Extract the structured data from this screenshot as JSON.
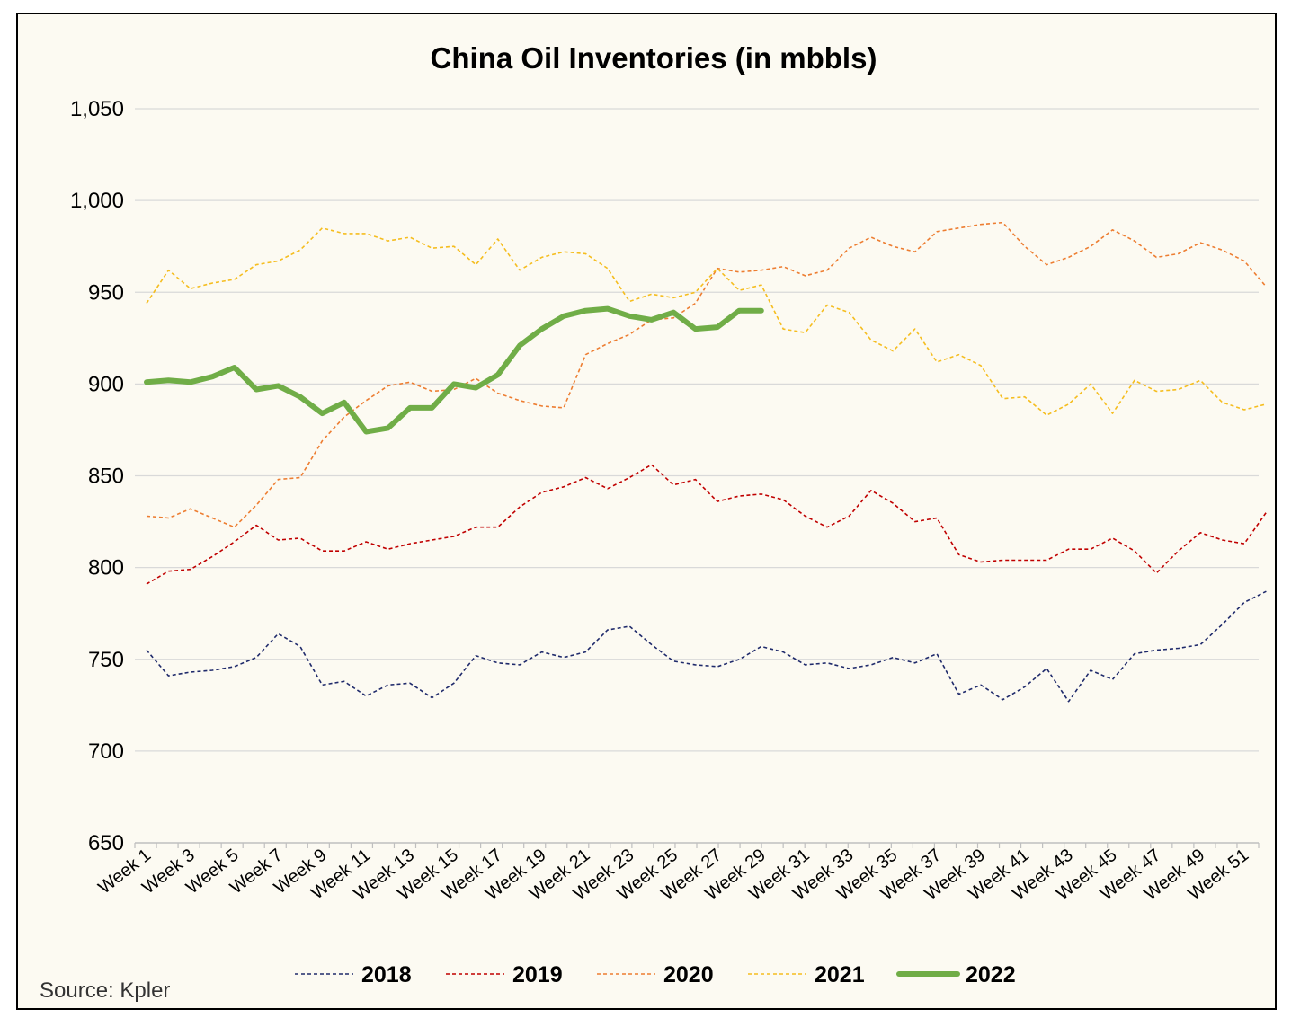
{
  "chart_data": {
    "type": "line",
    "title": "China Oil Inventories (in mbbls)",
    "source": "Source: Kpler",
    "ylim": [
      650,
      1050
    ],
    "y_ticks": [
      "1,050",
      "1,000",
      "950",
      "900",
      "850",
      "800",
      "750",
      "700",
      "650"
    ],
    "y_tick_values": [
      1050,
      1000,
      950,
      900,
      850,
      800,
      750,
      700,
      650
    ],
    "grid": true,
    "legend_position": "bottom",
    "x_labels": [
      "Week 1",
      "Week 3",
      "Week 5",
      "Week 7",
      "Week 9",
      "Week 11",
      "Week 13",
      "Week 15",
      "Week 17",
      "Week 19",
      "Week 21",
      "Week 23",
      "Week 25",
      "Week 27",
      "Week 29",
      "Week 31",
      "Week 33",
      "Week 35",
      "Week 37",
      "Week 39",
      "Week 41",
      "Week 43",
      "Week 45",
      "Week 47",
      "Week 49",
      "Week 51"
    ],
    "x_label_weeks": [
      1,
      3,
      5,
      7,
      9,
      11,
      13,
      15,
      17,
      19,
      21,
      23,
      25,
      27,
      29,
      31,
      33,
      35,
      37,
      39,
      41,
      43,
      45,
      47,
      49,
      51
    ],
    "num_weeks": 52,
    "series": [
      {
        "name": "2018",
        "color": "#1f2a6b",
        "style": "dashed",
        "values": [
          755,
          741,
          743,
          744,
          746,
          751,
          764,
          757,
          736,
          738,
          730,
          736,
          737,
          729,
          737,
          752,
          748,
          747,
          754,
          751,
          754,
          766,
          768,
          758,
          749,
          747,
          746,
          750,
          757,
          754,
          747,
          748,
          745,
          747,
          751,
          748,
          753,
          731,
          736,
          728,
          735,
          745,
          727,
          744,
          739,
          753,
          755,
          756,
          758,
          769,
          781,
          787
        ]
      },
      {
        "name": "2019",
        "color": "#c00000",
        "style": "dashed",
        "values": [
          791,
          798,
          799,
          806,
          814,
          823,
          815,
          816,
          809,
          809,
          814,
          810,
          813,
          815,
          817,
          822,
          822,
          833,
          841,
          844,
          849,
          843,
          849,
          856,
          845,
          848,
          836,
          839,
          840,
          837,
          828,
          822,
          828,
          842,
          835,
          825,
          827,
          807,
          803,
          804,
          804,
          804,
          810,
          810,
          816,
          809,
          797,
          809,
          819,
          815,
          813,
          830
        ]
      },
      {
        "name": "2020",
        "color": "#ed7d31",
        "style": "dashed",
        "values": [
          828,
          827,
          832,
          827,
          822,
          834,
          848,
          849,
          869,
          882,
          891,
          899,
          901,
          896,
          897,
          903,
          895,
          891,
          888,
          887,
          916,
          922,
          927,
          935,
          936,
          944,
          963,
          961,
          962,
          964,
          959,
          962,
          974,
          980,
          975,
          972,
          983,
          985,
          987,
          988,
          975,
          965,
          969,
          975,
          984,
          978,
          969,
          971,
          977,
          973,
          967,
          953
        ]
      },
      {
        "name": "2021",
        "color": "#f5bd1f",
        "style": "dashed",
        "values": [
          944,
          962,
          952,
          955,
          957,
          965,
          967,
          973,
          985,
          982,
          982,
          978,
          980,
          974,
          975,
          965,
          979,
          962,
          969,
          972,
          971,
          963,
          945,
          949,
          947,
          950,
          963,
          951,
          954,
          930,
          928,
          943,
          939,
          924,
          918,
          930,
          912,
          916,
          910,
          892,
          893,
          883,
          889,
          900,
          884,
          902,
          896,
          897,
          902,
          890,
          886,
          889
        ]
      },
      {
        "name": "2022",
        "color": "#70ad47",
        "style": "solid",
        "values": [
          901,
          902,
          901,
          904,
          909,
          897,
          899,
          893,
          884,
          890,
          874,
          876,
          887,
          887,
          900,
          898,
          905,
          921,
          930,
          937,
          940,
          941,
          937,
          935,
          939,
          930,
          931,
          940,
          940
        ]
      }
    ]
  }
}
